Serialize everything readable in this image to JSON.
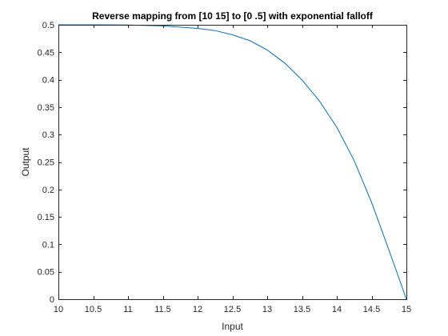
{
  "chart_data": {
    "type": "line",
    "title": "Reverse mapping from [10 15] to [0 .5] with exponential falloff",
    "xlabel": "Input",
    "ylabel": "Output",
    "xlim": [
      10,
      15
    ],
    "ylim": [
      0,
      0.5
    ],
    "xticks": [
      "10",
      "10.5",
      "11",
      "11.5",
      "12",
      "12.5",
      "13",
      "13.5",
      "14",
      "14.5",
      "15"
    ],
    "yticks": [
      "0",
      "0.05",
      "0.1",
      "0.15",
      "0.2",
      "0.25",
      "0.3",
      "0.35",
      "0.4",
      "0.45",
      "0.5"
    ],
    "grid": false,
    "series": [
      {
        "color": "#0072BD",
        "x": [
          10,
          10.5,
          11,
          11.5,
          12,
          12.25,
          12.5,
          12.75,
          13,
          13.25,
          13.5,
          13.75,
          14,
          14.25,
          14.5,
          14.75,
          15
        ],
        "y": [
          0.5,
          0.5,
          0.4997,
          0.498,
          0.4935,
          0.4895,
          0.4818,
          0.4712,
          0.4542,
          0.4305,
          0.3996,
          0.3612,
          0.3132,
          0.2525,
          0.1763,
          0.0892,
          0
        ]
      }
    ]
  }
}
